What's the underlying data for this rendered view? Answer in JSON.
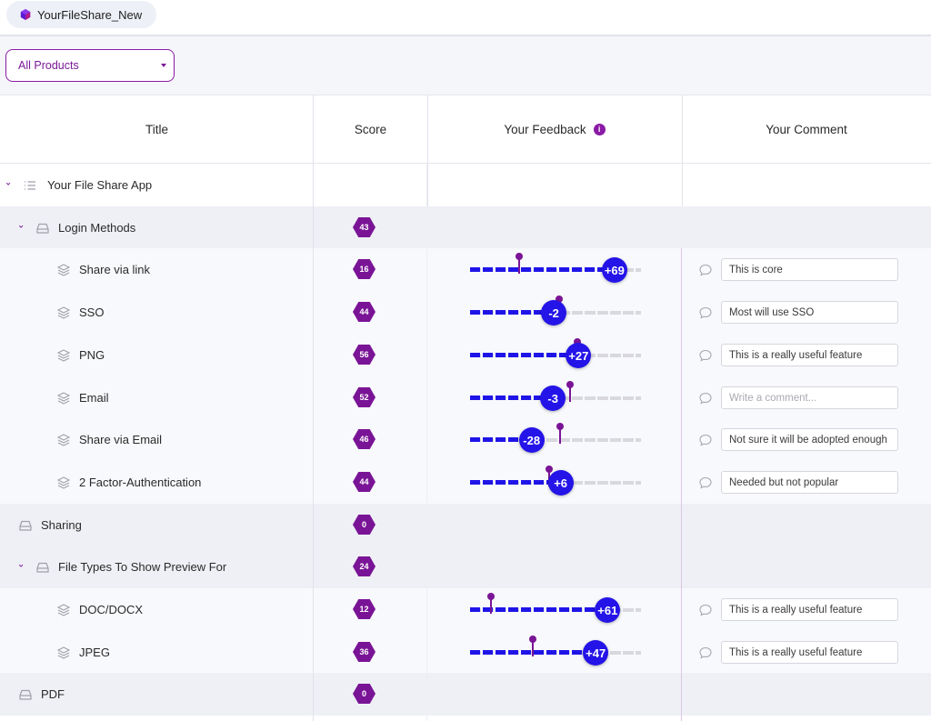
{
  "app": {
    "name": "YourFileShare_New",
    "brand_color": "#7a1496",
    "accent_color": "#2414e8"
  },
  "filter": {
    "selected": "All Products"
  },
  "columns": {
    "title": "Title",
    "score": "Score",
    "feedback": "Your Feedback",
    "comment": "Your Comment"
  },
  "rows": [
    {
      "title": "Your File Share App",
      "kind": "product",
      "expanded": true
    },
    {
      "title": "Login Methods",
      "kind": "group",
      "expanded": true,
      "score": "43"
    },
    {
      "title": "Share via link",
      "kind": "feature",
      "score": "16",
      "feedback": "+69",
      "feedback_value": 69,
      "marker_value": -44,
      "comment": "This is core"
    },
    {
      "title": "SSO",
      "kind": "feature",
      "score": "44",
      "feedback": "-2",
      "feedback_value": -2,
      "marker_value": 3,
      "comment": "Most will use SSO"
    },
    {
      "title": "PNG",
      "kind": "feature",
      "score": "56",
      "feedback": "+27",
      "feedback_value": 27,
      "marker_value": 24,
      "comment": "This is a really useful feature"
    },
    {
      "title": "Email",
      "kind": "feature",
      "score": "52",
      "feedback": "-3",
      "feedback_value": -3,
      "marker_value": 16,
      "comment_placeholder": "Write a comment..."
    },
    {
      "title": "Share via Email",
      "kind": "feature",
      "score": "46",
      "feedback": "-28",
      "feedback_value": -28,
      "marker_value": 4,
      "comment": "Not sure it will be adopted enough"
    },
    {
      "title": "2 Factor-Authentication",
      "kind": "feature",
      "score": "44",
      "feedback": "+6",
      "feedback_value": 6,
      "marker_value": -9,
      "comment": "Needed but not popular"
    },
    {
      "title": "Sharing",
      "kind": "group",
      "expanded": false,
      "score": "0"
    },
    {
      "title": "File Types To Show Preview For",
      "kind": "group",
      "expanded": true,
      "score": "24"
    },
    {
      "title": "DOC/DOCX",
      "kind": "feature",
      "score": "12",
      "feedback": "+61",
      "feedback_value": 61,
      "marker_value": -77,
      "comment": "This is a really useful feature"
    },
    {
      "title": "JPEG",
      "kind": "feature",
      "score": "36",
      "feedback": "+47",
      "feedback_value": 47,
      "marker_value": -28,
      "comment": "This is a really useful feature"
    },
    {
      "title": "PDF",
      "kind": "group",
      "expanded": false,
      "score": "0"
    }
  ]
}
